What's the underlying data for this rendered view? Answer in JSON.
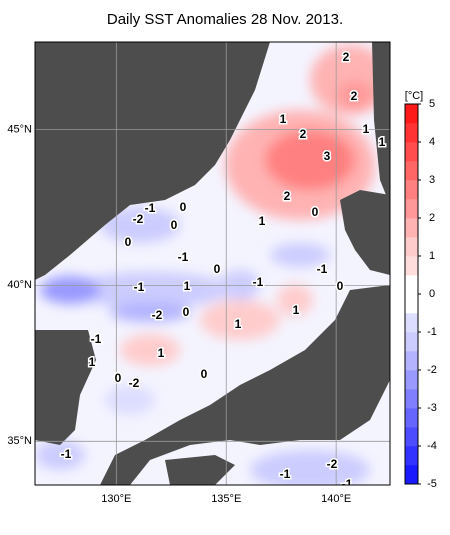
{
  "title": "Daily SST Anomalies 28 Nov. 2013.",
  "map": {
    "lonlim": [
      126.3,
      142.45
    ],
    "latlim": [
      33.6,
      47.8
    ],
    "lonticks": [
      {
        "value": 130,
        "label": "130°E"
      },
      {
        "value": 135,
        "label": "135°E"
      },
      {
        "value": 140,
        "label": "140°E"
      }
    ],
    "latticks": [
      {
        "value": 35,
        "label": "35°N"
      },
      {
        "value": 40,
        "label": "40°N"
      },
      {
        "value": 45,
        "label": "45°N"
      }
    ],
    "grid": true,
    "land_color": "#4d4d4d",
    "contour_labels": [
      2,
      2,
      1,
      2,
      1,
      1,
      3,
      2,
      -1,
      0,
      -2,
      0,
      0,
      1,
      0,
      -1,
      0,
      -1,
      -1,
      1,
      -1,
      0,
      1,
      -2,
      0,
      1,
      -1,
      1,
      1,
      0,
      -2,
      0,
      -1,
      -2,
      -1,
      -1
    ]
  },
  "colorbar": {
    "unit": "[°C]",
    "lim": [
      -5,
      5
    ],
    "ticks": [
      5,
      4,
      3,
      2,
      1,
      0,
      -1,
      -2,
      -3,
      -4,
      -5
    ],
    "colors": [
      "#1a1aff",
      "#3333ff",
      "#4d4dff",
      "#6666ff",
      "#8080ff",
      "#9999ff",
      "#b3b3ff",
      "#ccccff",
      "#ddddff",
      "#ffffff",
      "#ffffff",
      "#ffdddd",
      "#ffcccc",
      "#ffb3b3",
      "#ff9999",
      "#ff8080",
      "#ff6666",
      "#ff4d4d",
      "#ff3333",
      "#ff1a1a"
    ]
  }
}
